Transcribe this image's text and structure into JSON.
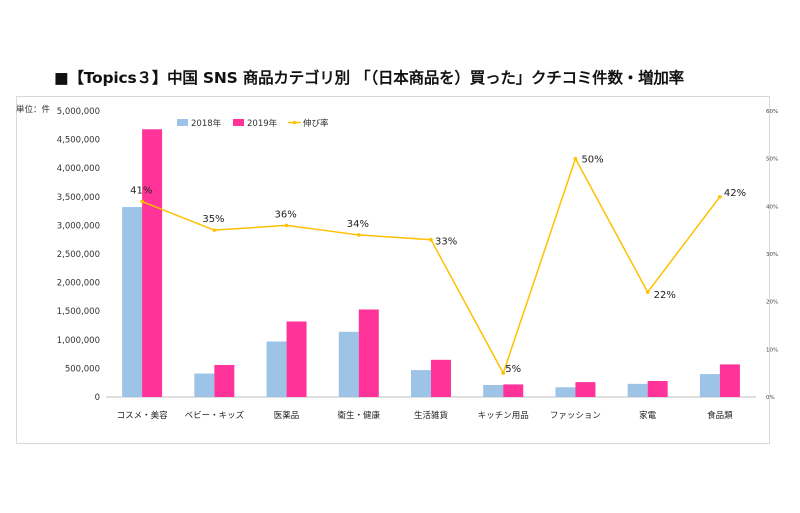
{
  "title": "■【Topics３】中国 SNS 商品カテゴリ別 「（日本商品を）買った」クチコミ件数・増加率",
  "chart_data": {
    "type": "bar",
    "unit_label": "単位：件",
    "categories": [
      "コスメ・美容",
      "ベビー・キッズ",
      "医薬品",
      "衛生・健康",
      "生活雑貨",
      "キッチン用品",
      "ファッション",
      "家電",
      "食品類"
    ],
    "series": [
      {
        "name": "2018年",
        "type": "bar",
        "color": "#9dc3e6",
        "values": [
          3320000,
          410000,
          970000,
          1140000,
          470000,
          210000,
          170000,
          230000,
          400000
        ]
      },
      {
        "name": "2019年",
        "type": "bar",
        "color": "#ff3399",
        "values": [
          4680000,
          560000,
          1320000,
          1530000,
          650000,
          220000,
          260000,
          280000,
          570000
        ]
      },
      {
        "name": "伸び率",
        "type": "line",
        "color": "#ffc000",
        "axis": "right",
        "values": [
          0.41,
          0.35,
          0.36,
          0.34,
          0.33,
          0.05,
          0.5,
          0.22,
          0.42
        ],
        "labels": [
          "41%",
          "35%",
          "36%",
          "34%",
          "33%",
          "5%",
          "50%",
          "22%",
          "42%"
        ]
      }
    ],
    "y_ticks": [
      "0",
      "500,000",
      "1,000,000",
      "1,500,000",
      "2,000,000",
      "2,500,000",
      "3,000,000",
      "3,500,000",
      "4,000,000",
      "4,500,000",
      "5,000,000"
    ],
    "ylim": [
      0,
      5000000
    ],
    "y2_ticks": [
      "0%",
      "10%",
      "20%",
      "30%",
      "40%",
      "50%",
      "60%"
    ],
    "y2lim": [
      0,
      0.6
    ],
    "legend_position": "top-left",
    "grid": false
  }
}
